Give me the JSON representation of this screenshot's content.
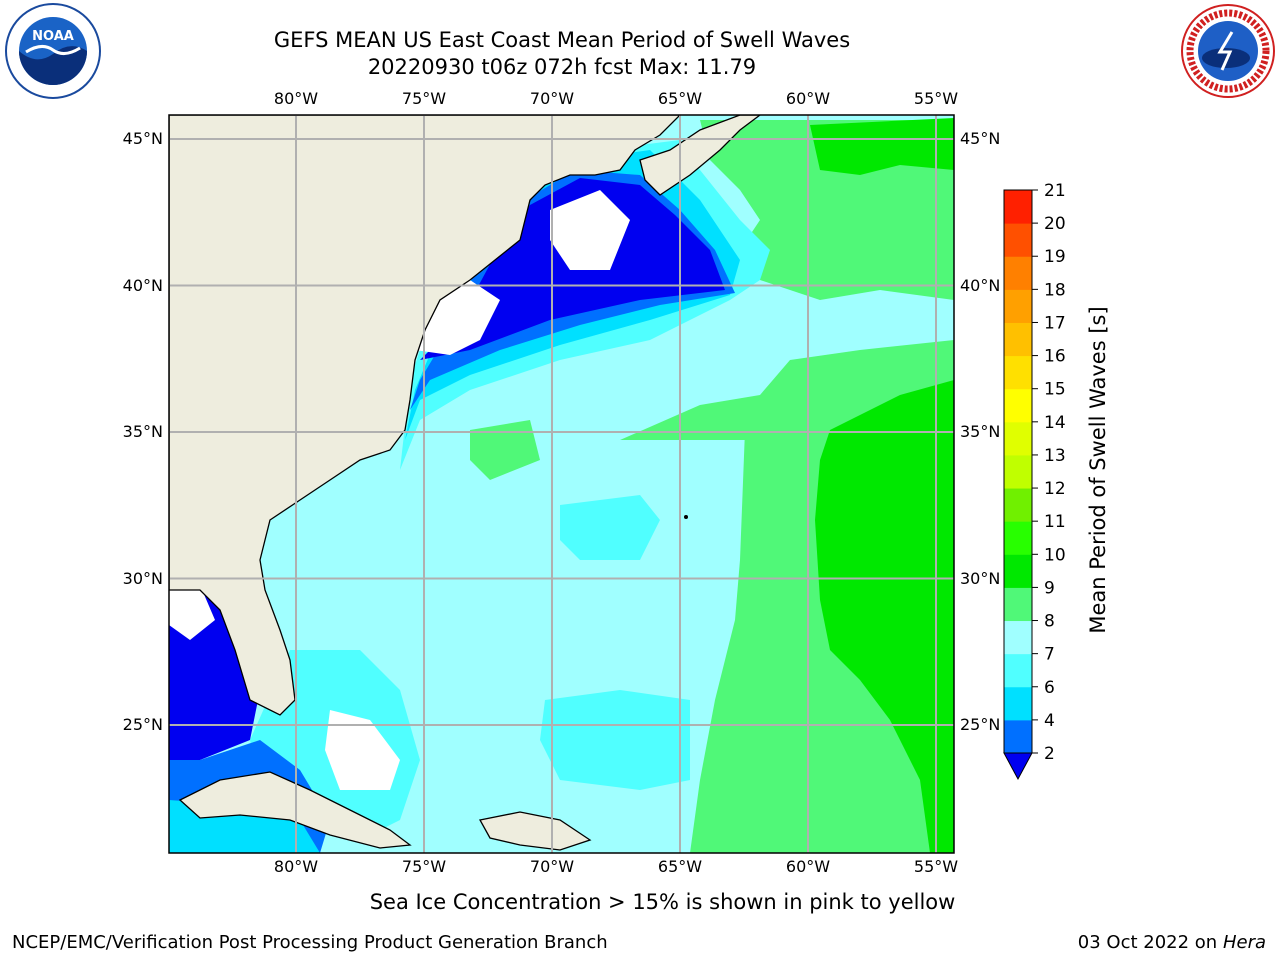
{
  "title": {
    "line1": "GEFS MEAN US East Coast Mean Period of Swell Waves",
    "line2": "20220930 t06z 072h fcst   Max: 11.79"
  },
  "map": {
    "lon_ticks": [
      "80°W",
      "75°W",
      "70°W",
      "65°W",
      "60°W",
      "55°W"
    ],
    "lat_ticks": [
      "45°N",
      "40°N",
      "35°N",
      "30°N",
      "25°N"
    ],
    "lon_range": [
      -85,
      -54.5
    ],
    "lat_range": [
      20.5,
      46
    ],
    "land_color": "#eeedde",
    "grid_color": "#b0b0b0"
  },
  "colorbar": {
    "label": "Mean Period of Swell Waves [s]",
    "ticks": [
      "2",
      "4",
      "6",
      "7",
      "8",
      "9",
      "10",
      "11",
      "12",
      "13",
      "14",
      "15",
      "16",
      "17",
      "18",
      "19",
      "20",
      "21"
    ],
    "colors": [
      "#0070ff",
      "#00e0ff",
      "#50ffff",
      "#a0ffff",
      "#50f878",
      "#00e800",
      "#28ff00",
      "#70f000",
      "#c0ff00",
      "#e0ff00",
      "#ffff00",
      "#ffe000",
      "#ffc000",
      "#ffa000",
      "#ff8000",
      "#ff5000",
      "#ff2000"
    ],
    "underflow_color": "#0000f0"
  },
  "note": "Sea Ice Concentration > 15% is shown in pink to yellow",
  "footer": {
    "left": "NCEP/EMC/Verification Post Processing Product Generation Branch",
    "right_prefix": "03 Oct 2022 on",
    "right_host": "Hera"
  },
  "logos": {
    "noaa_text": "NOAA",
    "nws_text": "NATIONAL WEATHER SERVICE"
  }
}
